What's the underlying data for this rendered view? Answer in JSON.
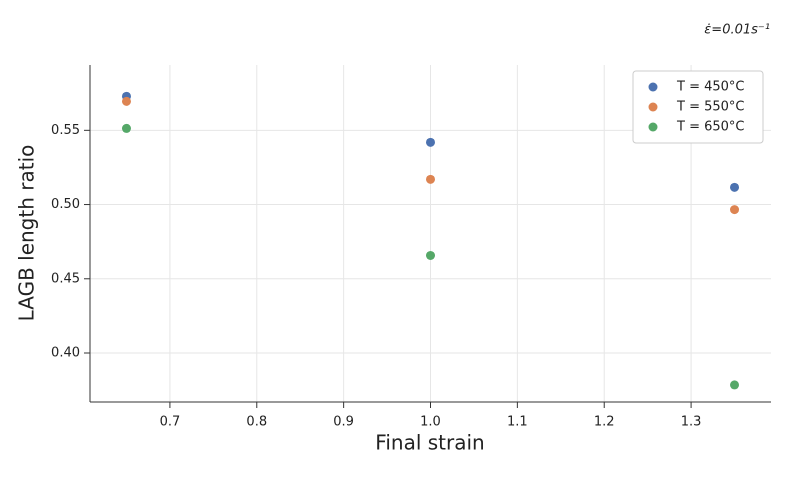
{
  "chart_data": {
    "type": "scatter",
    "annotation": "ε̇=0.01s⁻¹",
    "x_label": "Final strain",
    "y_label": "LAGB length ratio",
    "x": [
      0.65,
      1.0,
      1.35
    ],
    "series": [
      {
        "name": "T = 450°C",
        "color": "#4c72b0",
        "values": [
          0.5729,
          0.5419,
          0.5116
        ]
      },
      {
        "name": "T = 550°C",
        "color": "#dd8452",
        "values": [
          0.5695,
          0.517,
          0.4966
        ]
      },
      {
        "name": "T = 650°C",
        "color": "#55a868",
        "values": [
          0.5513,
          0.4657,
          0.3785
        ]
      }
    ],
    "xlim": [
      0.608,
      1.392
    ],
    "xticks": [
      0.7,
      0.8,
      0.9,
      {
        "value": 1,
        "label": "1.0"
      },
      1.1,
      1.2,
      1.3
    ],
    "ylim": [
      0.367,
      0.594
    ],
    "yticks": [
      {
        "value": 0.4,
        "label": "0.40"
      },
      0.45,
      {
        "value": 0.5,
        "label": "0.50"
      },
      0.55
    ],
    "grid": true,
    "legend": "upper right"
  }
}
